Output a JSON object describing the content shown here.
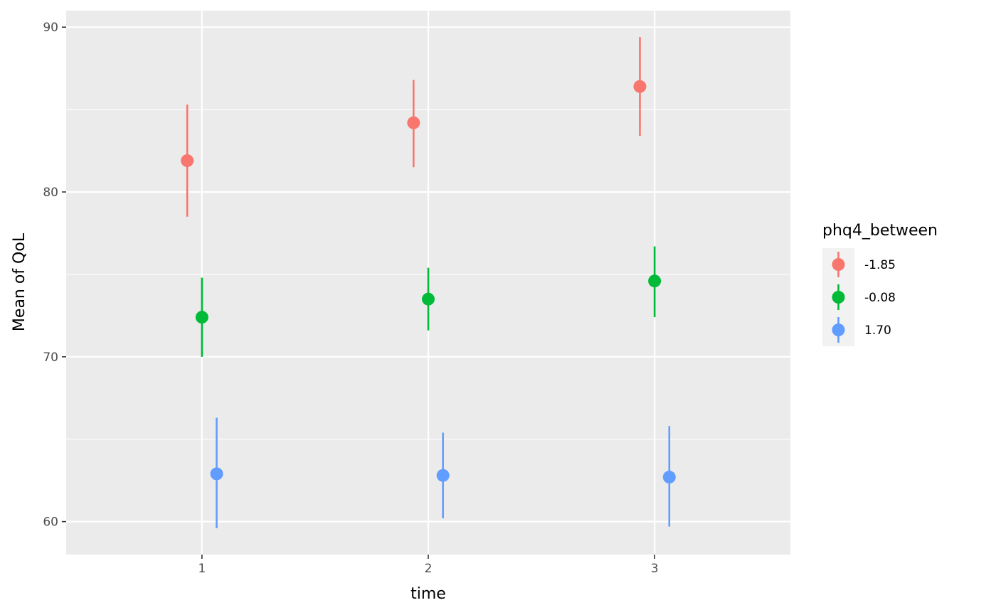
{
  "chart_data": {
    "type": "scatter",
    "title": "",
    "xlabel": "time",
    "ylabel": "Mean of QoL",
    "categories": [
      "1",
      "2",
      "3"
    ],
    "xlim": [
      0.4,
      3.6
    ],
    "ylim": [
      58,
      91
    ],
    "y_ticks": [
      60,
      70,
      80,
      90
    ],
    "grid": true,
    "legend": {
      "title": "phq4_between",
      "position": "right"
    },
    "series": [
      {
        "name": "-1.85",
        "color": "#F8766D",
        "x": [
          1,
          2,
          3
        ],
        "values": [
          81.9,
          84.2,
          86.4
        ],
        "lower": [
          78.5,
          81.5,
          83.4
        ],
        "upper": [
          85.3,
          86.8,
          89.4
        ]
      },
      {
        "name": "-0.08",
        "color": "#00BA38",
        "x": [
          1,
          2,
          3
        ],
        "values": [
          72.4,
          73.5,
          74.6
        ],
        "lower": [
          70.0,
          71.6,
          72.4
        ],
        "upper": [
          74.8,
          75.4,
          76.7
        ]
      },
      {
        "name": "1.70",
        "color": "#619CFF",
        "x": [
          1,
          2,
          3
        ],
        "values": [
          62.9,
          62.8,
          62.7
        ],
        "lower": [
          59.6,
          60.2,
          59.7
        ],
        "upper": [
          66.3,
          65.4,
          65.8
        ]
      }
    ]
  }
}
